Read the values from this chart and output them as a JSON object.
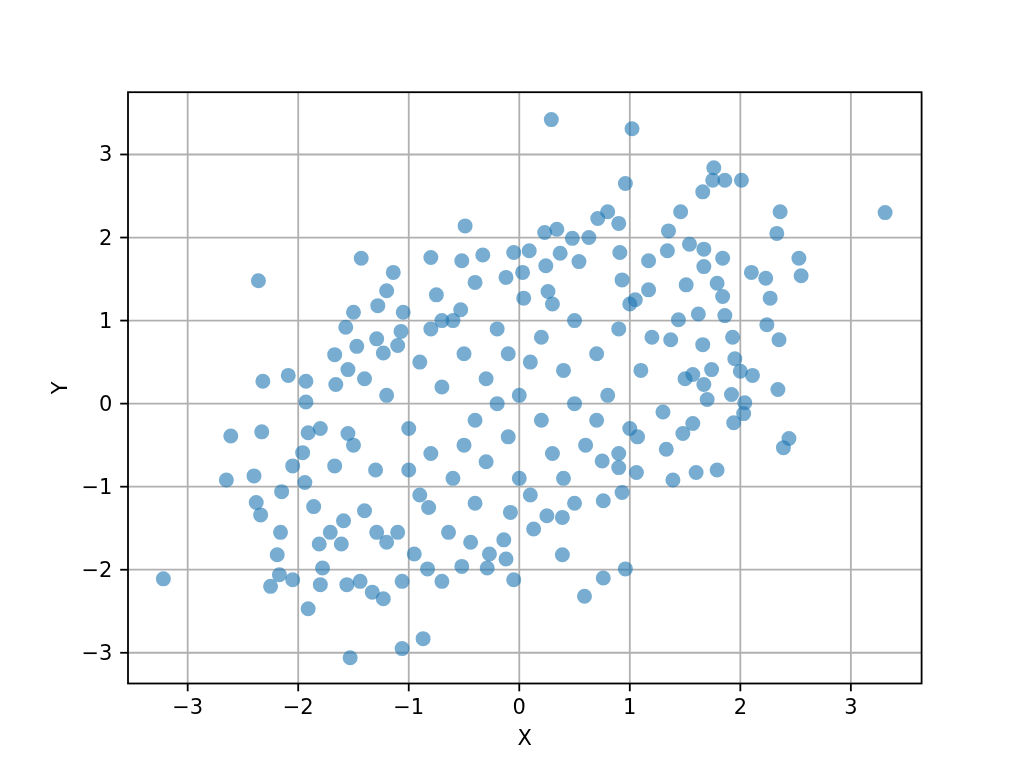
{
  "chart_data": {
    "type": "scatter",
    "xlabel": "X",
    "ylabel": "Y",
    "color": "#1f77b4",
    "marker": "circle",
    "grid": true,
    "xlim": [
      -3.54,
      3.64
    ],
    "ylim": [
      -3.37,
      3.75
    ],
    "xticks": [
      {
        "value": -3,
        "label": "−3"
      },
      {
        "value": -2,
        "label": "−2"
      },
      {
        "value": -1,
        "label": "−1"
      },
      0,
      1,
      2,
      3
    ],
    "yticks": [
      {
        "value": -3,
        "label": "−3"
      },
      {
        "value": -2,
        "label": "−2"
      },
      {
        "value": -1,
        "label": "−1"
      },
      0,
      1,
      2,
      3
    ],
    "x": [
      -3.22,
      -2.61,
      -2.65,
      -2.33,
      -2.4,
      -2.15,
      -2.38,
      -2.34,
      -2.16,
      -2.19,
      -2.17,
      -2.25,
      -2.05,
      -1.91,
      -1.53,
      -1.8,
      -1.78,
      -1.81,
      -1.61,
      -1.71,
      -1.56,
      -1.44,
      -1.33,
      -1.23,
      -1.86,
      -1.59,
      -2.05,
      -1.96,
      -1.91,
      -1.8,
      -1.94,
      -1.67,
      -1.55,
      -1.4,
      -1.29,
      -1.2,
      -1.93,
      -2.36,
      -1.43,
      -1.2,
      -1.28,
      -1.5,
      -1.57,
      -1.29,
      -1.47,
      -1.67,
      -1.55,
      -2.32,
      -2.09,
      -1.93,
      -1.66,
      -1.14,
      -1.23,
      0.29,
      1.02,
      0.96,
      -0.49,
      0.71,
      0.8,
      0.9,
      0.23,
      0.34,
      0.48,
      0.63,
      -0.8,
      -0.52,
      -0.33,
      -0.05,
      0.09,
      0.37,
      0.24,
      0.54,
      0.03,
      -0.12,
      -0.4,
      -0.75,
      -1.05,
      -1.07,
      -0.53,
      0.04,
      0.26,
      0.93,
      1.05,
      1.17,
      1.17,
      0.91,
      -0.7,
      1.76,
      1.75,
      1.86,
      2.01,
      1.66,
      1.46,
      2.36,
      3.31,
      2.33,
      1.35,
      2.53,
      2.55,
      2.1,
      2.23,
      2.27,
      2.24,
      2.35,
      1.84,
      1.54,
      1.67,
      1.67,
      1.34,
      1.79,
      1.84,
      1.86,
      1.93,
      1.95,
      2.11,
      2.0,
      2.34,
      1.51,
      1.44,
      1.62,
      1.37,
      1.66,
      1.74,
      1.57,
      1.67,
      1.92,
      2.04,
      2.03,
      1.94,
      1.7,
      2.44,
      2.39,
      1.57,
      1.48,
      1.33,
      1.6,
      1.79,
      1.39,
      -1.06,
      -0.87,
      -1.06,
      -0.7,
      -0.52,
      -0.83,
      -0.95,
      -0.29,
      -0.27,
      -0.05,
      -0.12,
      -0.14,
      -0.44,
      -0.64,
      -0.82,
      0.39,
      0.59,
      0.76,
      0.96,
      0.39,
      0.25,
      0.13,
      0.5,
      0.76,
      0.93,
      0.9,
      1.06,
      1.07,
      0.75,
      -1.1,
      -0.08,
      -1.2,
      -1.0,
      -0.9,
      -0.8,
      -0.7,
      -0.6,
      -0.5,
      -0.4,
      -0.3,
      -0.3,
      -0.2,
      -0.1,
      0.0,
      0.0,
      0.1,
      0.2,
      0.2,
      0.3,
      0.4,
      0.5,
      0.5,
      0.6,
      0.7,
      0.8,
      0.9,
      1.0,
      1.1,
      1.2,
      1.3,
      -1.3,
      -1.1,
      -0.9,
      -0.5,
      -0.2,
      0.1,
      0.4,
      0.7,
      1.0,
      -0.6,
      0.3,
      -1.4,
      -1.5,
      1.5,
      -0.8,
      -0.1,
      -0.4,
      0.9,
      -1.0
    ],
    "values": [
      -2.11,
      -0.39,
      -0.92,
      -0.34,
      -0.87,
      -1.06,
      -1.19,
      -1.34,
      -1.55,
      -1.82,
      -2.06,
      -2.2,
      -2.12,
      -2.47,
      -3.06,
      -2.18,
      -1.98,
      -1.69,
      -1.69,
      -1.55,
      -2.18,
      -2.14,
      -2.27,
      -2.35,
      -1.24,
      -1.41,
      -0.75,
      -0.59,
      -0.35,
      -0.3,
      -0.95,
      -0.75,
      -0.36,
      -1.29,
      -1.55,
      -1.67,
      0.02,
      1.48,
      1.75,
      1.36,
      1.18,
      1.1,
      0.92,
      0.78,
      0.69,
      0.59,
      0.41,
      0.27,
      0.34,
      0.27,
      0.23,
      1.58,
      0.61,
      3.42,
      3.31,
      2.65,
      2.14,
      2.23,
      2.31,
      2.17,
      2.06,
      2.1,
      1.99,
      2.0,
      1.76,
      1.72,
      1.79,
      1.82,
      1.84,
      1.81,
      1.66,
      1.71,
      1.58,
      1.52,
      1.46,
      1.31,
      1.1,
      0.87,
      1.13,
      1.27,
      1.35,
      1.49,
      1.25,
      1.37,
      1.72,
      1.82,
      1.0,
      2.84,
      2.69,
      2.69,
      2.69,
      2.55,
      2.31,
      2.31,
      2.3,
      2.05,
      2.08,
      1.75,
      1.54,
      1.58,
      1.51,
      1.27,
      0.95,
      0.77,
      1.75,
      1.92,
      1.86,
      1.65,
      1.84,
      1.45,
      1.29,
      1.06,
      0.8,
      0.54,
      0.34,
      0.39,
      0.17,
      1.43,
      1.01,
      1.08,
      0.77,
      0.71,
      0.41,
      0.35,
      0.23,
      0.11,
      0.01,
      -0.12,
      -0.23,
      0.05,
      -0.42,
      -0.53,
      -0.24,
      -0.36,
      -0.55,
      -0.83,
      -0.8,
      -0.92,
      -2.95,
      -2.83,
      -2.14,
      -2.14,
      -1.96,
      -1.99,
      -1.81,
      -1.98,
      -1.81,
      -2.12,
      -1.87,
      -1.64,
      -1.67,
      -1.55,
      -1.25,
      -1.82,
      -2.32,
      -2.1,
      -1.99,
      -1.37,
      -1.35,
      -1.51,
      -1.2,
      -1.17,
      -1.07,
      -0.77,
      -0.83,
      -0.4,
      -0.69,
      -1.55,
      -1.31,
      0.1,
      -0.3,
      0.5,
      -0.6,
      0.2,
      -0.9,
      0.6,
      -0.2,
      0.3,
      -0.7,
      0.9,
      -0.4,
      0.1,
      -0.9,
      0.5,
      -0.2,
      0.8,
      -0.6,
      0.4,
      0.0,
      1.0,
      -0.5,
      0.6,
      0.1,
      0.9,
      -0.3,
      0.4,
      0.8,
      -0.1,
      -0.8,
      0.7,
      -1.1,
      -0.5,
      0.0,
      -1.1,
      -0.9,
      -0.2,
      1.2,
      1.0,
      1.2,
      0.3,
      -0.5,
      0.3,
      0.9,
      0.6,
      -1.2,
      -0.6,
      -0.8
    ]
  }
}
